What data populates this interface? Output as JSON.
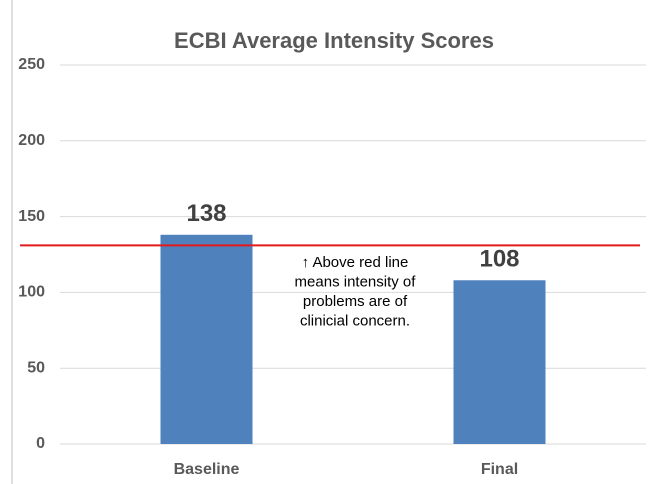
{
  "chart_data": {
    "type": "bar",
    "title": "ECBI Average Intensity Scores",
    "categories": [
      "Baseline",
      "Final"
    ],
    "values": [
      138,
      108
    ],
    "color": "#4f81bd",
    "ylim": [
      0,
      250
    ],
    "yticks": [
      0,
      50,
      100,
      150,
      200,
      250
    ],
    "grid": true,
    "reference_line": {
      "value": 131,
      "color": "#e31a1c"
    },
    "annotation": [
      "↑ Above red line",
      "means intensity of",
      "problems are of",
      "clinicial concern."
    ]
  }
}
